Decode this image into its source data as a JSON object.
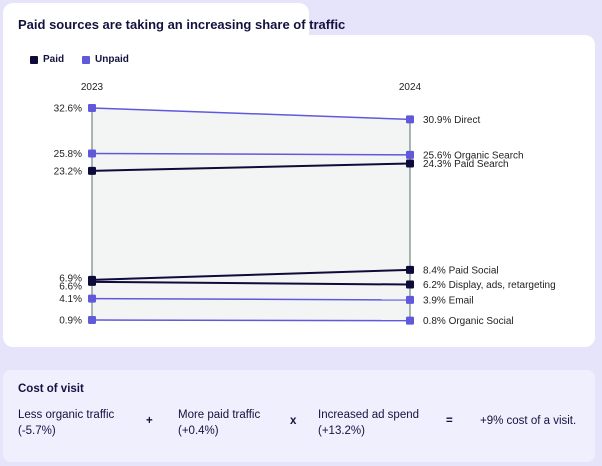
{
  "chart_data": {
    "type": "line",
    "title": "Paid sources are taking an increasing share of traffic",
    "x": [
      "2023",
      "2024"
    ],
    "legend": [
      {
        "name": "Paid",
        "color": "#0d0b3a"
      },
      {
        "name": "Unpaid",
        "color": "#6059dc"
      }
    ],
    "ylim": [
      0,
      34
    ],
    "series": [
      {
        "name": "Direct",
        "group": "Unpaid",
        "values": [
          32.6,
          30.9
        ],
        "start_label": "32.6%",
        "end_label": "30.9% Direct"
      },
      {
        "name": "Organic Search",
        "group": "Unpaid",
        "values": [
          25.8,
          25.6
        ],
        "start_label": "25.8%",
        "end_label": "25.6% Organic Search"
      },
      {
        "name": "Paid Search",
        "group": "Paid",
        "values": [
          23.2,
          24.3
        ],
        "start_label": "23.2%",
        "end_label": "24.3% Paid Search"
      },
      {
        "name": "Paid Social",
        "group": "Paid",
        "values": [
          6.9,
          8.4
        ],
        "start_label": "6.9%",
        "end_label": "8.4% Paid Social"
      },
      {
        "name": "Display, ads, retargeting",
        "group": "Paid",
        "values": [
          6.6,
          6.2
        ],
        "start_label": "6.6%",
        "end_label": "6.2% Display, ads, retargeting"
      },
      {
        "name": "Email",
        "group": "Unpaid",
        "values": [
          4.1,
          3.9
        ],
        "start_label": "4.1%",
        "end_label": "3.9% Email"
      },
      {
        "name": "Organic Social",
        "group": "Unpaid",
        "values": [
          0.9,
          0.8
        ],
        "start_label": "0.9%",
        "end_label": "0.8% Organic Social"
      }
    ]
  },
  "colors": {
    "paid": "#0d0b3a",
    "unpaid": "#6059dc",
    "axis": "#6f8582",
    "fill": "#f3f5f4"
  },
  "cost": {
    "title": "Cost of visit",
    "terms": [
      {
        "line1": "Less organic traffic",
        "line2": "(-5.7%)"
      },
      {
        "line1": "More paid traffic",
        "line2": "(+0.4%)"
      },
      {
        "line1": "Increased ad spend",
        "line2": "(+13.2%)"
      }
    ],
    "ops": [
      "+",
      "x",
      "="
    ],
    "result": "+9% cost of a visit."
  }
}
